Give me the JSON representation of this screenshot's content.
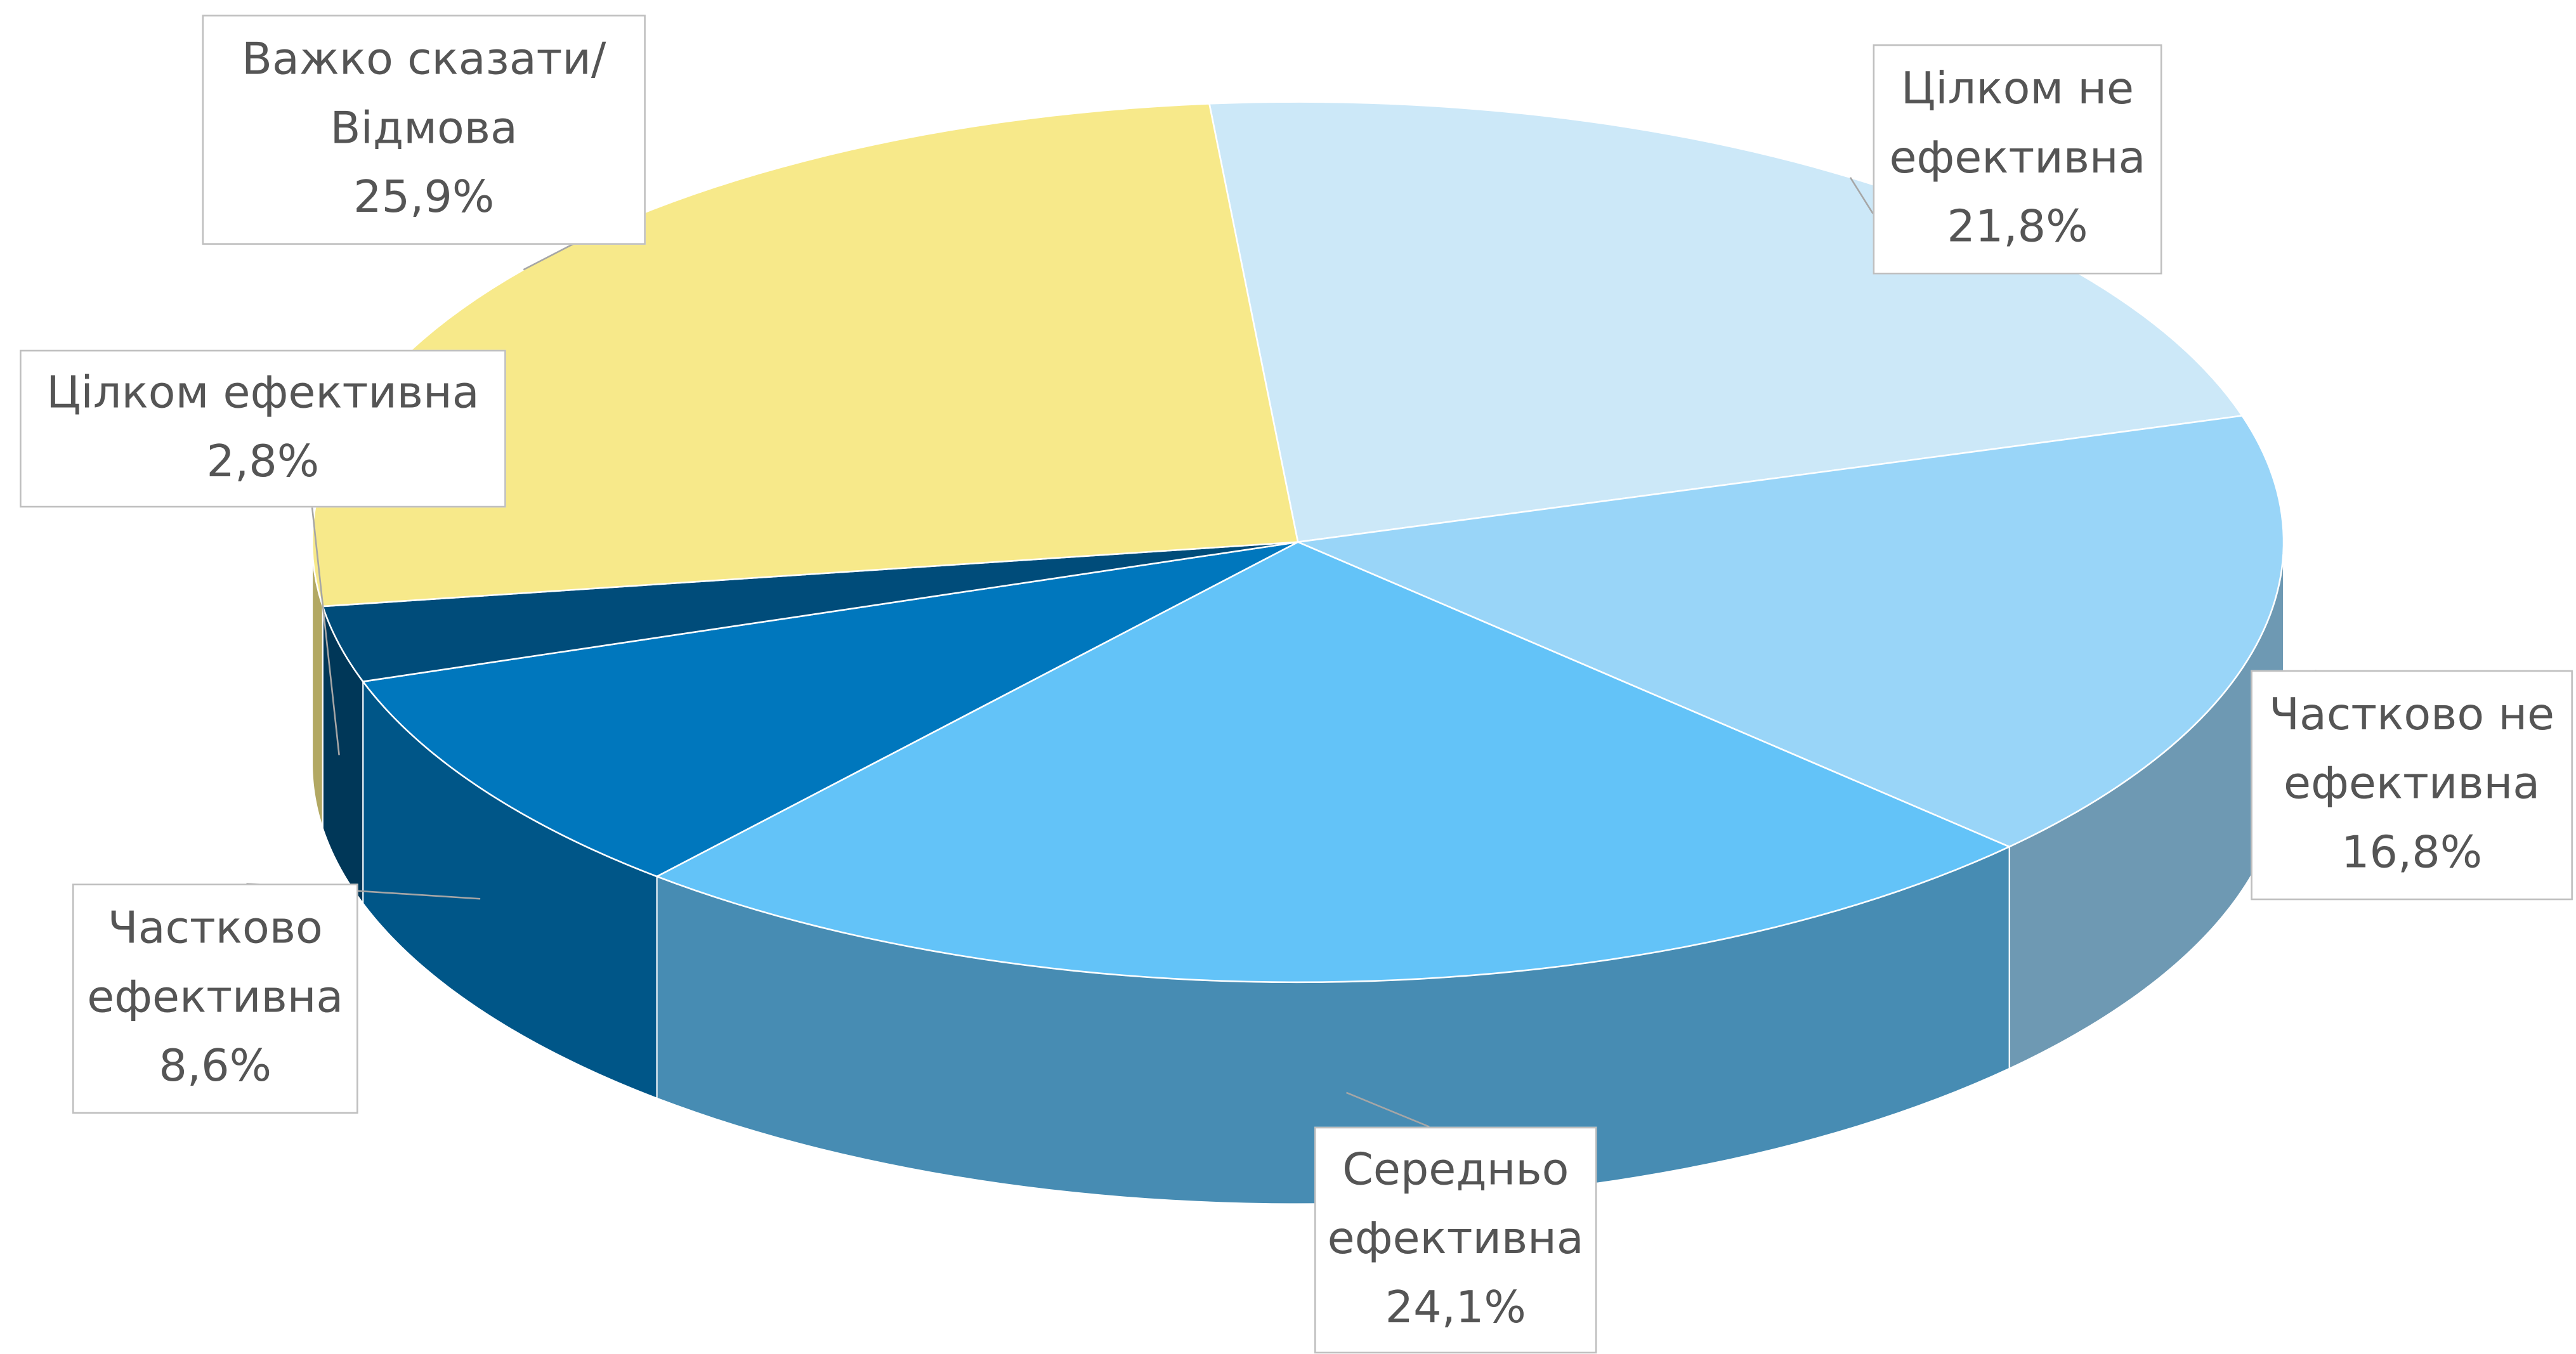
{
  "chart_data": {
    "type": "pie3d",
    "categories": [
      "Цілком не ефективна",
      "Частково не ефективна",
      "Середньо ефективна",
      "Частково ефективна",
      "Цілком ефективна",
      "Важко сказати/Відмова"
    ],
    "values": [
      21.8,
      16.8,
      24.1,
      8.6,
      2.8,
      25.9
    ],
    "value_labels": [
      "21,8%",
      "16,8%",
      "24,1%",
      "8,6%",
      "2,8%",
      "25,9%"
    ],
    "colors": [
      "#cce8f8",
      "#99d5f8",
      "#63c3f8",
      "#0077bd",
      "#004c7a",
      "#f7e98a"
    ]
  }
}
